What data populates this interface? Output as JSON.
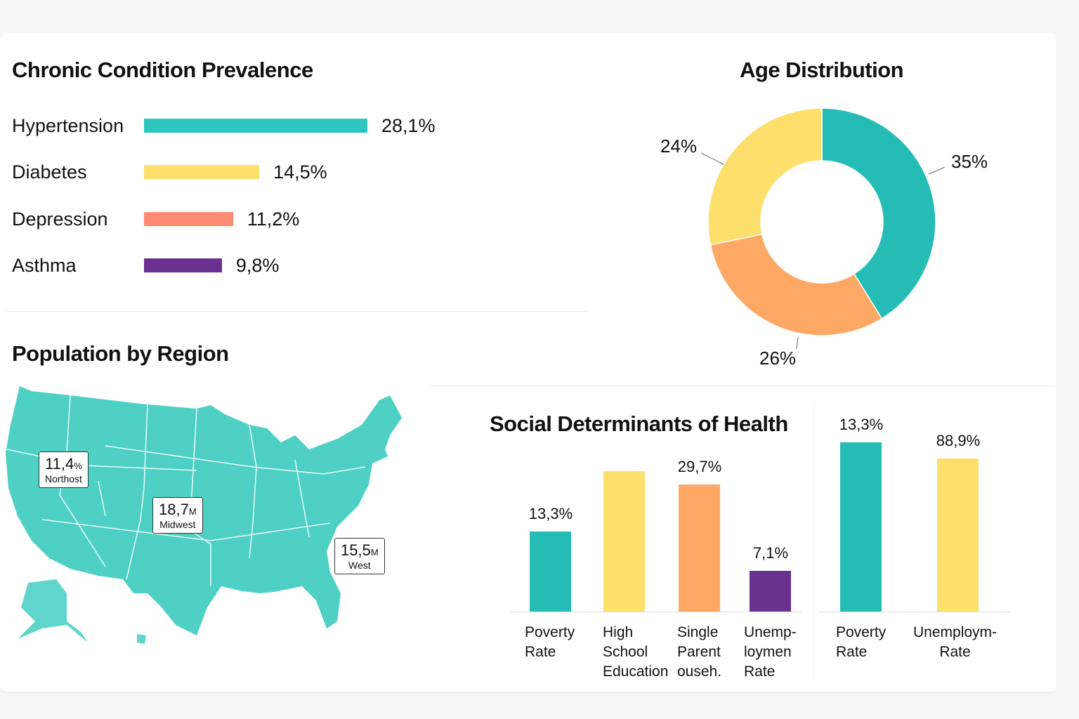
{
  "colors": {
    "teal": "#26bcb6",
    "yellow": "#fddf6c",
    "orange": "#fea866",
    "salmon": "#fe8a72",
    "purple": "#6a3190",
    "map": "#4ed0c5"
  },
  "chart_data": [
    {
      "type": "bar",
      "orientation": "horizontal",
      "title": "Chronic Condition Prevalence",
      "categories": [
        "Hypertension",
        "Diabetes",
        "Depression",
        "Asthma"
      ],
      "values": [
        28.1,
        14.5,
        11.2,
        9.8
      ],
      "labels": [
        "28,1%",
        "14,5%",
        "11,2%",
        "9,8%"
      ],
      "colors": [
        "#2ec6be",
        "#fddf6c",
        "#fe8a72",
        "#6a3190"
      ]
    },
    {
      "type": "pie",
      "variant": "donut",
      "title": "Age Distribution",
      "values": [
        35,
        26,
        24
      ],
      "labels": [
        "35%",
        "26%",
        "24%"
      ],
      "colors": [
        "#26bcb6",
        "#fea866",
        "#fddf6c"
      ]
    },
    {
      "type": "bar",
      "title": "Social Determinants of Health",
      "categories": [
        "Poverty\nRate",
        "High\nSchool\nEducation",
        "Single\nParent\nouseh.",
        "Unemp-\nloymen\nRate"
      ],
      "labels": [
        "13,3%",
        "",
        "29,7%",
        "7,1%"
      ],
      "colors": [
        "#26bcb6",
        "#fddf6c",
        "#fea866",
        "#6a3190"
      ]
    },
    {
      "type": "bar",
      "categories": [
        "Poverty\nRate",
        "Unemploym-\nRate"
      ],
      "labels": [
        "13,3%",
        "88,9%"
      ],
      "colors": [
        "#26bcb6",
        "#fddf6c"
      ]
    }
  ],
  "map": {
    "title": "Population by Region",
    "tags": [
      {
        "value": "11,4",
        "unit": "%",
        "name": "Northost"
      },
      {
        "value": "18,7",
        "unit": "M",
        "name": "Midwest"
      },
      {
        "value": "15,5",
        "unit": "M",
        "name": "West"
      }
    ]
  }
}
